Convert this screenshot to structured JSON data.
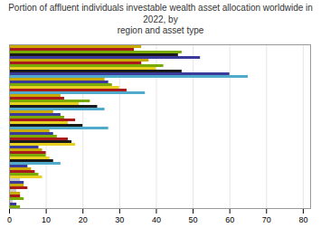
{
  "chart_data": {
    "type": "bar",
    "orientation": "horizontal",
    "title": "Portion of affluent individuals investable wealth asset allocation worldwide in 2022, by\nregion and asset type",
    "categories": [
      null,
      null,
      null,
      null,
      null,
      null,
      null,
      null,
      null,
      null,
      null,
      null,
      null,
      null,
      null,
      null,
      null,
      null,
      null,
      null,
      null,
      null,
      null,
      null,
      null,
      null,
      null,
      null,
      null,
      null,
      null,
      null,
      null,
      null,
      null,
      null,
      null,
      null,
      null,
      null,
      null,
      null,
      null,
      null,
      null,
      null,
      null,
      null,
      null,
      null,
      null,
      null,
      null,
      null,
      null,
      null,
      null,
      null,
      null,
      null
    ],
    "values": [
      36,
      34,
      47,
      46,
      52,
      38,
      36,
      42,
      40,
      47,
      60,
      65,
      26,
      27,
      28,
      30,
      32,
      37,
      14,
      15,
      22,
      19,
      24,
      26,
      12,
      14,
      15,
      18,
      16,
      20,
      27,
      11,
      12,
      13,
      16,
      17,
      18,
      8,
      9,
      10,
      10,
      11,
      12,
      14,
      5,
      6,
      7,
      8,
      9,
      3,
      4,
      4,
      5,
      2,
      3,
      3,
      4,
      1,
      2,
      3
    ],
    "colors": [
      "#c8aa00",
      "#aa1a1a",
      "#78aa00",
      "#1a1a1a",
      "#3a3a9a",
      "#c8aa00",
      "#aa1a1a",
      "#78aa00",
      "#e8d020",
      "#1a1a1a",
      "#3a3a9a",
      "#50aacc",
      "#c8aa00",
      "#3a3a9a",
      "#78aa00",
      "#e8d020",
      "#aa1a1a",
      "#50aacc",
      "#c8aa00",
      "#aa1a1a",
      "#78aa00",
      "#e8d020",
      "#1a1a1a",
      "#50aacc",
      "#c8aa00",
      "#3a3a9a",
      "#78aa00",
      "#aa1a1a",
      "#e8d020",
      "#1a1a1a",
      "#50aacc",
      "#c8aa00",
      "#3a3a9a",
      "#78aa00",
      "#aa1a1a",
      "#1a1a1a",
      "#e8d020",
      "#3a3a9a",
      "#c8aa00",
      "#aa1a1a",
      "#78aa00",
      "#e8d020",
      "#1a1a1a",
      "#50aacc",
      "#3a3a9a",
      "#c8aa00",
      "#aa1a1a",
      "#78aa00",
      "#e8d020",
      "#c8c8c8",
      "#3a3a9a",
      "#c8aa00",
      "#aa1a1a",
      "#c8c8c8",
      "#c8aa00",
      "#aa1a1a",
      "#78aa00",
      "#c8c8c8",
      "#3a3a9a",
      "#78aa00"
    ],
    "xlim": [
      0,
      82
    ],
    "xticks": [
      0,
      10,
      20,
      30,
      40,
      50,
      60,
      70,
      80
    ],
    "grid": true,
    "tick_labels": "x"
  }
}
